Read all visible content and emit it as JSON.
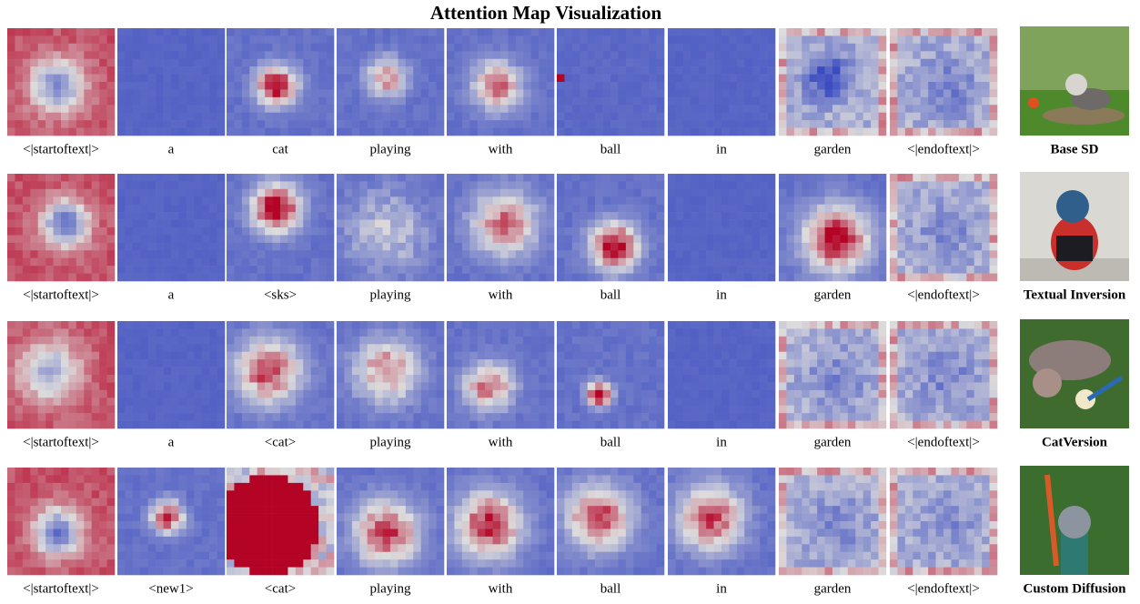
{
  "title": "Attention Map Visualization",
  "rows": [
    {
      "tokens": [
        "<|startoftext|>",
        "a",
        "cat",
        "playing",
        "with",
        "ball",
        "in",
        "garden",
        "<|endoftext|>"
      ],
      "method": "Base SD"
    },
    {
      "tokens": [
        "<|startoftext|>",
        "a",
        "<sks>",
        "playing",
        "with",
        "ball",
        "in",
        "garden",
        "<|endoftext|>"
      ],
      "method": "Textual Inversion"
    },
    {
      "tokens": [
        "<|startoftext|>",
        "a",
        "<cat>",
        "playing",
        "with",
        "ball",
        "in",
        "garden",
        "<|endoftext|>"
      ],
      "method": "CatVersion"
    },
    {
      "tokens": [
        "<|startoftext|>",
        "<new1>",
        "<cat>",
        "playing",
        "with",
        "ball",
        "in",
        "garden",
        "<|endoftext|>"
      ],
      "method": "Custom Diffusion"
    }
  ]
}
